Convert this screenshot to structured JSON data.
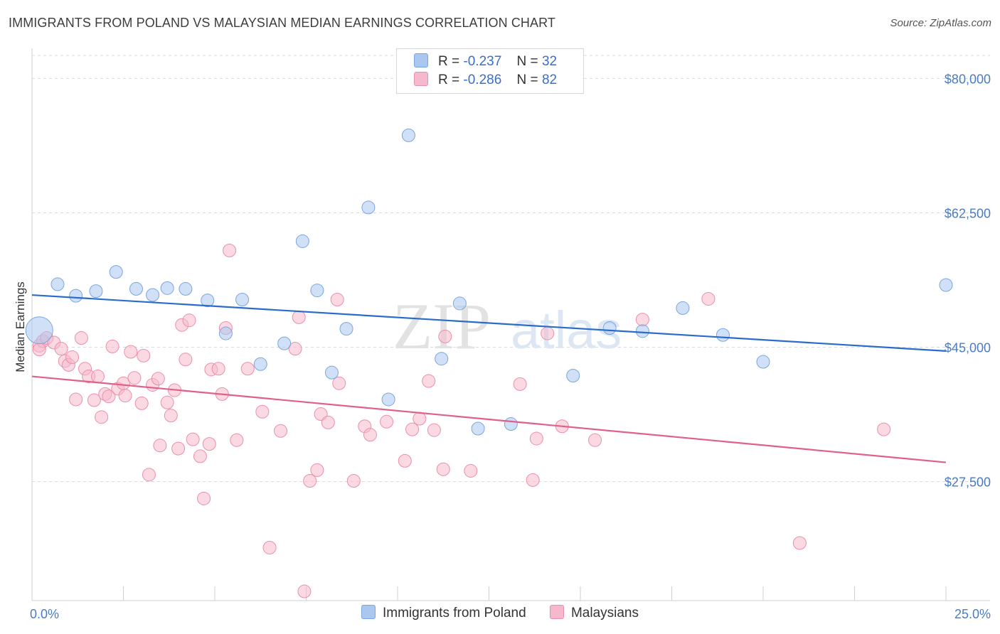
{
  "title": "IMMIGRANTS FROM POLAND VS MALAYSIAN MEDIAN EARNINGS CORRELATION CHART",
  "source": "Source: ZipAtlas.com",
  "watermark": {
    "zip": "ZIP",
    "atlas": "atlas"
  },
  "legend": {
    "rows": [
      {
        "r_label": "R =",
        "r_value": "-0.237",
        "n_label": "N =",
        "n_value": "32"
      },
      {
        "r_label": "R =",
        "r_value": "-0.286",
        "n_label": "N =",
        "n_value": "82"
      }
    ]
  },
  "colors": {
    "poland_fill": "#a9c7ef",
    "poland_stroke": "#7aa6de",
    "poland_line": "#2a6ccc",
    "malaysian_fill": "#f6b9cc",
    "malaysian_stroke": "#ea8fab",
    "malaysian_line": "#e0608a",
    "grid": "#d9d9d9",
    "axis_text": "#4a7cc4"
  },
  "chart_data": {
    "type": "scatter",
    "xlabel": "",
    "ylabel": "Median Earnings",
    "xlim": [
      0,
      25
    ],
    "ylim": [
      12000,
      83000
    ],
    "x_tick_labels": [
      "0.0%",
      "25.0%"
    ],
    "y_ticks": [
      27500,
      45000,
      62500,
      80000
    ],
    "y_tick_labels": [
      "$27,500",
      "$45,000",
      "$62,500",
      "$80,000"
    ],
    "grid": true,
    "legend_position": "top-center",
    "series": [
      {
        "name": "Immigrants from Poland",
        "trend": {
          "x": [
            0,
            25
          ],
          "y": [
            51800,
            44500
          ]
        },
        "points": [
          {
            "x": 0.2,
            "y": 47200,
            "big": true
          },
          {
            "x": 0.7,
            "y": 53200
          },
          {
            "x": 1.2,
            "y": 51700
          },
          {
            "x": 1.75,
            "y": 52300
          },
          {
            "x": 2.3,
            "y": 54800
          },
          {
            "x": 2.85,
            "y": 52600
          },
          {
            "x": 3.3,
            "y": 51800
          },
          {
            "x": 3.7,
            "y": 52700
          },
          {
            "x": 4.2,
            "y": 52600
          },
          {
            "x": 4.8,
            "y": 51100
          },
          {
            "x": 5.3,
            "y": 46800
          },
          {
            "x": 5.75,
            "y": 51200
          },
          {
            "x": 6.25,
            "y": 42800
          },
          {
            "x": 6.9,
            "y": 45500
          },
          {
            "x": 7.4,
            "y": 58800
          },
          {
            "x": 7.8,
            "y": 52400
          },
          {
            "x": 8.2,
            "y": 41700
          },
          {
            "x": 8.6,
            "y": 47400
          },
          {
            "x": 9.2,
            "y": 63200
          },
          {
            "x": 9.75,
            "y": 38200
          },
          {
            "x": 10.3,
            "y": 72600
          },
          {
            "x": 11.2,
            "y": 43500
          },
          {
            "x": 11.7,
            "y": 50700
          },
          {
            "x": 12.2,
            "y": 34400
          },
          {
            "x": 13.1,
            "y": 35000
          },
          {
            "x": 14.8,
            "y": 41300
          },
          {
            "x": 15.8,
            "y": 47500
          },
          {
            "x": 16.7,
            "y": 47100
          },
          {
            "x": 17.8,
            "y": 50100
          },
          {
            "x": 18.9,
            "y": 46600
          },
          {
            "x": 20.0,
            "y": 43100
          },
          {
            "x": 25.0,
            "y": 53100
          }
        ]
      },
      {
        "name": "Malaysians",
        "trend": {
          "x": [
            0,
            25
          ],
          "y": [
            41200,
            30000
          ]
        },
        "points": [
          {
            "x": 0.2,
            "y": 45200
          },
          {
            "x": 0.3,
            "y": 45800
          },
          {
            "x": 0.4,
            "y": 46200
          },
          {
            "x": 0.6,
            "y": 45600
          },
          {
            "x": 0.8,
            "y": 44800
          },
          {
            "x": 0.9,
            "y": 43200
          },
          {
            "x": 1.0,
            "y": 42700
          },
          {
            "x": 1.1,
            "y": 43700
          },
          {
            "x": 1.2,
            "y": 38200
          },
          {
            "x": 1.35,
            "y": 46200
          },
          {
            "x": 1.45,
            "y": 42200
          },
          {
            "x": 1.55,
            "y": 41200
          },
          {
            "x": 1.7,
            "y": 38100
          },
          {
            "x": 1.8,
            "y": 41200
          },
          {
            "x": 1.9,
            "y": 35900
          },
          {
            "x": 2.0,
            "y": 38900
          },
          {
            "x": 2.1,
            "y": 38600
          },
          {
            "x": 2.2,
            "y": 45100
          },
          {
            "x": 2.35,
            "y": 39600
          },
          {
            "x": 2.5,
            "y": 40300
          },
          {
            "x": 2.55,
            "y": 38700
          },
          {
            "x": 2.7,
            "y": 44400
          },
          {
            "x": 2.8,
            "y": 41000
          },
          {
            "x": 3.0,
            "y": 37700
          },
          {
            "x": 3.05,
            "y": 43900
          },
          {
            "x": 3.2,
            "y": 28400
          },
          {
            "x": 3.3,
            "y": 40100
          },
          {
            "x": 3.45,
            "y": 40900
          },
          {
            "x": 3.5,
            "y": 32200
          },
          {
            "x": 3.7,
            "y": 37800
          },
          {
            "x": 3.8,
            "y": 36100
          },
          {
            "x": 3.9,
            "y": 39400
          },
          {
            "x": 4.0,
            "y": 31800
          },
          {
            "x": 4.1,
            "y": 47900
          },
          {
            "x": 4.2,
            "y": 43400
          },
          {
            "x": 4.3,
            "y": 48500
          },
          {
            "x": 4.4,
            "y": 33000
          },
          {
            "x": 4.6,
            "y": 30800
          },
          {
            "x": 4.7,
            "y": 25300
          },
          {
            "x": 4.85,
            "y": 32400
          },
          {
            "x": 4.9,
            "y": 42100
          },
          {
            "x": 5.1,
            "y": 42200
          },
          {
            "x": 5.2,
            "y": 38900
          },
          {
            "x": 5.3,
            "y": 47500
          },
          {
            "x": 5.4,
            "y": 57600
          },
          {
            "x": 5.6,
            "y": 32900
          },
          {
            "x": 5.9,
            "y": 42200
          },
          {
            "x": 6.3,
            "y": 36600
          },
          {
            "x": 6.5,
            "y": 18900
          },
          {
            "x": 6.8,
            "y": 34100
          },
          {
            "x": 7.2,
            "y": 44800
          },
          {
            "x": 7.3,
            "y": 48900
          },
          {
            "x": 7.45,
            "y": 13200
          },
          {
            "x": 7.6,
            "y": 27600
          },
          {
            "x": 7.8,
            "y": 29000
          },
          {
            "x": 7.9,
            "y": 36300
          },
          {
            "x": 8.1,
            "y": 35200
          },
          {
            "x": 8.35,
            "y": 51200
          },
          {
            "x": 8.4,
            "y": 40300
          },
          {
            "x": 8.8,
            "y": 27600
          },
          {
            "x": 9.1,
            "y": 34700
          },
          {
            "x": 9.25,
            "y": 33600
          },
          {
            "x": 9.7,
            "y": 35300
          },
          {
            "x": 10.2,
            "y": 30200
          },
          {
            "x": 10.4,
            "y": 34300
          },
          {
            "x": 10.6,
            "y": 35700
          },
          {
            "x": 10.85,
            "y": 40600
          },
          {
            "x": 11.0,
            "y": 34200
          },
          {
            "x": 11.25,
            "y": 29100
          },
          {
            "x": 11.3,
            "y": 46400
          },
          {
            "x": 12.0,
            "y": 28900
          },
          {
            "x": 13.35,
            "y": 40200
          },
          {
            "x": 13.7,
            "y": 27700
          },
          {
            "x": 13.8,
            "y": 33100
          },
          {
            "x": 14.1,
            "y": 46800
          },
          {
            "x": 14.5,
            "y": 34700
          },
          {
            "x": 15.4,
            "y": 32900
          },
          {
            "x": 16.7,
            "y": 48600
          },
          {
            "x": 18.5,
            "y": 51300
          },
          {
            "x": 21.0,
            "y": 19500
          },
          {
            "x": 23.3,
            "y": 34300
          },
          {
            "x": 0.2,
            "y": 44700
          }
        ]
      }
    ]
  }
}
